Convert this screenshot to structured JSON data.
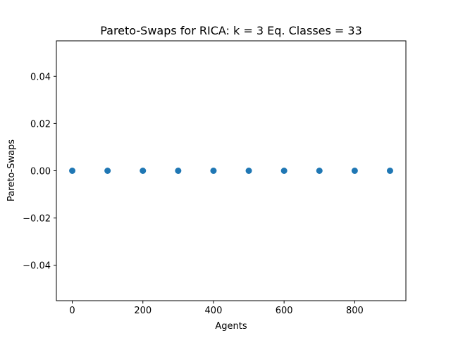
{
  "chart_data": {
    "type": "scatter",
    "title": "Pareto-Swaps for RICA: k = 3 Eq. Classes = 33",
    "xlabel": "Agents",
    "ylabel": "Pareto-Swaps",
    "xlim": [
      -45,
      945
    ],
    "ylim": [
      -0.055,
      0.055
    ],
    "xticks": [
      0,
      200,
      400,
      600,
      800
    ],
    "xtick_labels": [
      "0",
      "200",
      "400",
      "600",
      "800"
    ],
    "yticks": [
      0.04,
      0.02,
      0.0,
      -0.02,
      -0.04
    ],
    "ytick_labels": [
      "0.04",
      "0.02",
      "0.00",
      "−0.02",
      "−0.04"
    ],
    "grid": false,
    "marker_color": "#1f77b4",
    "series": [
      {
        "x": [
          0,
          100,
          200,
          300,
          400,
          500,
          600,
          700,
          800,
          900
        ],
        "y": [
          0,
          0,
          0,
          0,
          0,
          0,
          0,
          0,
          0,
          0
        ]
      }
    ]
  }
}
